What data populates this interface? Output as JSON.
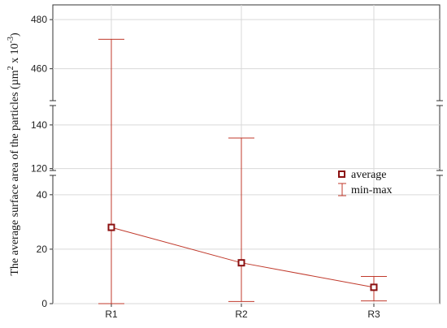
{
  "chart_data": {
    "type": "line",
    "ylabel_prefix": "The average surface area of the particles (µm",
    "ylabel_sup1": "2",
    "ylabel_mid": " x 10",
    "ylabel_sup2": "-3",
    "ylabel_suffix": ")",
    "categories": [
      "R1",
      "R2",
      "R3"
    ],
    "average": [
      28,
      15,
      6
    ],
    "min": [
      0,
      0.8,
      1
    ],
    "max": [
      472,
      134,
      10
    ],
    "y_segments": [
      {
        "range": [
          0,
          48
        ],
        "ticks": [
          0,
          20,
          40
        ]
      },
      {
        "range": [
          118,
          150
        ],
        "ticks": [
          120,
          140
        ]
      },
      {
        "range": [
          446,
          486
        ],
        "ticks": [
          460,
          480
        ]
      }
    ],
    "grid": true,
    "legend": {
      "position": "right",
      "average_label": "average",
      "minmax_label": "min-max"
    },
    "colors": {
      "series": "#c0392b",
      "marker_fill": "#8b1010",
      "grid": "#d9d9d9",
      "axis": "#333333"
    }
  }
}
